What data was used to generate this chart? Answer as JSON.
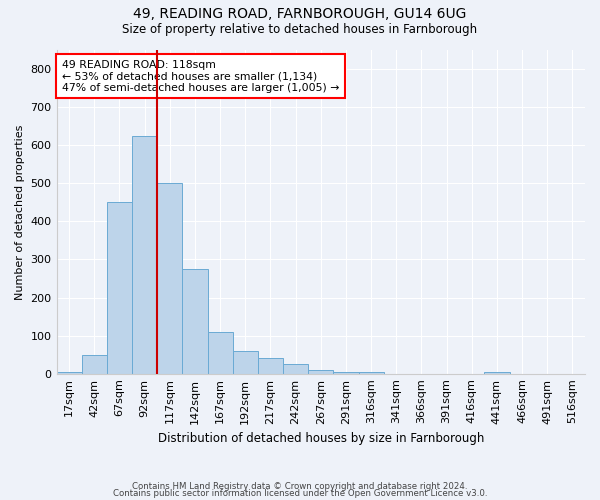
{
  "title1": "49, READING ROAD, FARNBOROUGH, GU14 6UG",
  "title2": "Size of property relative to detached houses in Farnborough",
  "xlabel": "Distribution of detached houses by size in Farnborough",
  "ylabel": "Number of detached properties",
  "footnote1": "Contains HM Land Registry data © Crown copyright and database right 2024.",
  "footnote2": "Contains public sector information licensed under the Open Government Licence v3.0.",
  "bin_labels": [
    "17sqm",
    "42sqm",
    "67sqm",
    "92sqm",
    "117sqm",
    "142sqm",
    "167sqm",
    "192sqm",
    "217sqm",
    "242sqm",
    "267sqm",
    "291sqm",
    "316sqm",
    "341sqm",
    "366sqm",
    "391sqm",
    "416sqm",
    "441sqm",
    "466sqm",
    "491sqm",
    "516sqm"
  ],
  "bar_values": [
    5,
    50,
    450,
    625,
    500,
    275,
    110,
    60,
    40,
    25,
    10,
    5,
    5,
    0,
    0,
    0,
    0,
    5,
    0,
    0,
    0
  ],
  "bar_color": "#bdd4ea",
  "bar_edge_color": "#6aaad4",
  "vline_color": "#cc0000",
  "ylim": [
    0,
    850
  ],
  "yticks": [
    0,
    100,
    200,
    300,
    400,
    500,
    600,
    700,
    800
  ],
  "annotation_text": "49 READING ROAD: 118sqm\n← 53% of detached houses are smaller (1,134)\n47% of semi-detached houses are larger (1,005) →",
  "background_color": "#eef2f9",
  "grid_color": "#ffffff"
}
